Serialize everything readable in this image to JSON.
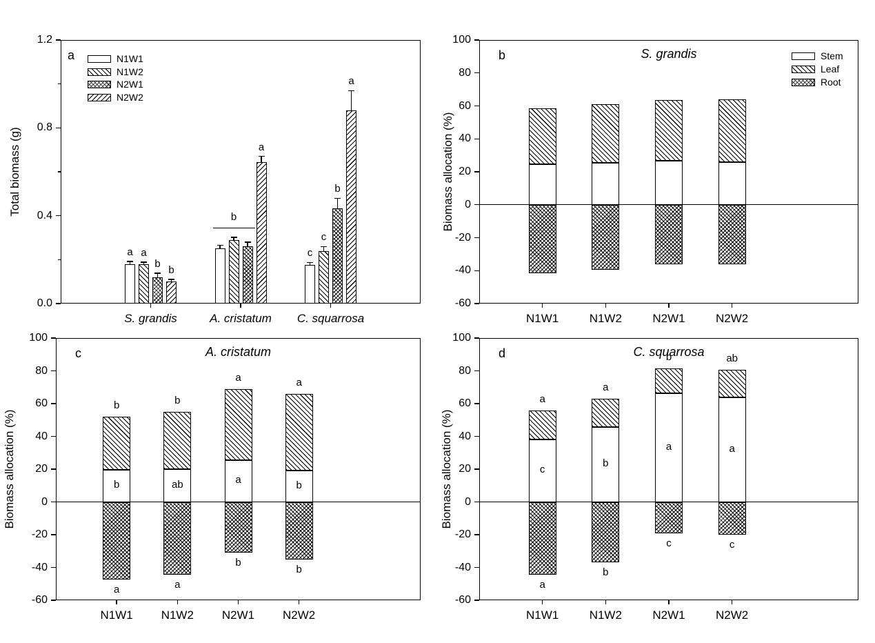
{
  "figure": {
    "background_color": "#ffffff",
    "ink_color": "#000000"
  },
  "chart_data": [
    {
      "id": "a",
      "type": "bar",
      "panel_label": "a",
      "title": "",
      "ylabel": "Total biomass (g)",
      "xlabel": "",
      "ylim": [
        0,
        1.2
      ],
      "yticks": {
        "values": [
          0,
          0.4,
          0.8,
          1.2
        ],
        "labels": [
          "0.0",
          "0.4",
          "0.8",
          "1.2"
        ],
        "minor": [
          0.2,
          0.6,
          1.0
        ]
      },
      "grid": false,
      "categories": [
        "S. grandis",
        "A. cristatum",
        "C. squarrosa"
      ],
      "series": [
        {
          "name": "N1W1",
          "pattern": "plain",
          "values": [
            0.18,
            0.25,
            0.175
          ],
          "errors": [
            0.012,
            0.015,
            0.012
          ]
        },
        {
          "name": "N1W2",
          "pattern": "diag-fwd",
          "values": [
            0.18,
            0.29,
            0.24
          ],
          "errors": [
            0.008,
            0.012,
            0.02
          ]
        },
        {
          "name": "N2W1",
          "pattern": "cross",
          "values": [
            0.12,
            0.26,
            0.435
          ],
          "errors": [
            0.018,
            0.02,
            0.045
          ]
        },
        {
          "name": "N2W2",
          "pattern": "diag-back",
          "values": [
            0.1,
            0.645,
            0.88
          ],
          "errors": [
            0.01,
            0.025,
            0.09
          ]
        }
      ],
      "sig_letters": [
        [
          "a",
          "a",
          "b",
          "b"
        ],
        [
          "",
          "",
          "",
          "a"
        ],
        [
          "c",
          "c",
          "b",
          "a"
        ]
      ],
      "group_annotations": [
        {
          "category_index": 1,
          "letter": "b",
          "bar_span": [
            0,
            2
          ],
          "line_y": 0.345
        }
      ],
      "legend": {
        "position": "top-left",
        "items": [
          "N1W1",
          "N1W2",
          "N2W1",
          "N2W2"
        ]
      }
    },
    {
      "id": "b",
      "type": "diverging_stacked_bar",
      "panel_label": "b",
      "title": "S. grandis",
      "ylabel": "Biomass allocation (%)",
      "xlabel": "",
      "ylim": [
        -60,
        100
      ],
      "yticks": {
        "values": [
          -60,
          -40,
          -20,
          0,
          20,
          40,
          60,
          80,
          100
        ],
        "labels": [
          "-60",
          "-40",
          "-20",
          "0",
          "20",
          "40",
          "60",
          "80",
          "100"
        ],
        "minor": []
      },
      "grid": false,
      "zero_line": true,
      "categories": [
        "N1W1",
        "N1W2",
        "N2W1",
        "N2W2"
      ],
      "series": [
        {
          "name": "Stem",
          "pattern": "plain",
          "values": [
            24.5,
            25.5,
            26.5,
            26
          ]
        },
        {
          "name": "Leaf",
          "pattern": "diag-fwd",
          "values": [
            34,
            35.5,
            37,
            38
          ]
        },
        {
          "name": "Root",
          "pattern": "cross",
          "values": [
            -41.5,
            -39.5,
            -36,
            -36
          ]
        }
      ],
      "legend": {
        "position": "top-right",
        "items": [
          "Stem",
          "Leaf",
          "Root"
        ]
      }
    },
    {
      "id": "c",
      "type": "diverging_stacked_bar",
      "panel_label": "c",
      "title": "A. cristatum",
      "ylabel": "Biomass allocation (%)",
      "xlabel": "",
      "ylim": [
        -60,
        100
      ],
      "yticks": {
        "values": [
          -60,
          -40,
          -20,
          0,
          20,
          40,
          60,
          80,
          100
        ],
        "labels": [
          "-60",
          "-40",
          "-20",
          "0",
          "20",
          "40",
          "60",
          "80",
          "100"
        ],
        "minor": []
      },
      "grid": false,
      "zero_line": true,
      "categories": [
        "N1W1",
        "N1W2",
        "N2W1",
        "N2W2"
      ],
      "series": [
        {
          "name": "Stem",
          "pattern": "plain",
          "values": [
            19.5,
            20,
            25.5,
            19
          ]
        },
        {
          "name": "Leaf",
          "pattern": "diag-fwd",
          "values": [
            32.5,
            35,
            43.5,
            47
          ]
        },
        {
          "name": "Root",
          "pattern": "cross",
          "values": [
            -47.5,
            -44.5,
            -31,
            -35
          ]
        }
      ],
      "sig_letters": {
        "above": [
          "b",
          "b",
          "a",
          "a"
        ],
        "stem": [
          "b",
          "ab",
          "a",
          "b"
        ],
        "below": [
          "a",
          "a",
          "b",
          "b"
        ]
      }
    },
    {
      "id": "d",
      "type": "diverging_stacked_bar",
      "panel_label": "d",
      "title": "C. squarrosa",
      "ylabel": "Biomass allocation (%)",
      "xlabel": "",
      "ylim": [
        -60,
        100
      ],
      "yticks": {
        "values": [
          -60,
          -40,
          -20,
          0,
          20,
          40,
          60,
          80,
          100
        ],
        "labels": [
          "-60",
          "-40",
          "-20",
          "0",
          "20",
          "40",
          "60",
          "80",
          "100"
        ],
        "minor": []
      },
      "grid": false,
      "zero_line": true,
      "categories": [
        "N1W1",
        "N1W2",
        "N2W1",
        "N2W2"
      ],
      "series": [
        {
          "name": "Stem",
          "pattern": "plain",
          "values": [
            38,
            45.5,
            66.5,
            64
          ]
        },
        {
          "name": "Leaf",
          "pattern": "diag-fwd",
          "values": [
            18,
            17.5,
            15,
            16.5
          ]
        },
        {
          "name": "Root",
          "pattern": "cross",
          "values": [
            -44.5,
            -37,
            -19,
            -20
          ]
        }
      ],
      "sig_letters": {
        "above": [
          "a",
          "a",
          "b",
          "ab"
        ],
        "stem": [
          "c",
          "b",
          "a",
          "a"
        ],
        "below": [
          "a",
          "b",
          "c",
          "c"
        ]
      }
    }
  ]
}
